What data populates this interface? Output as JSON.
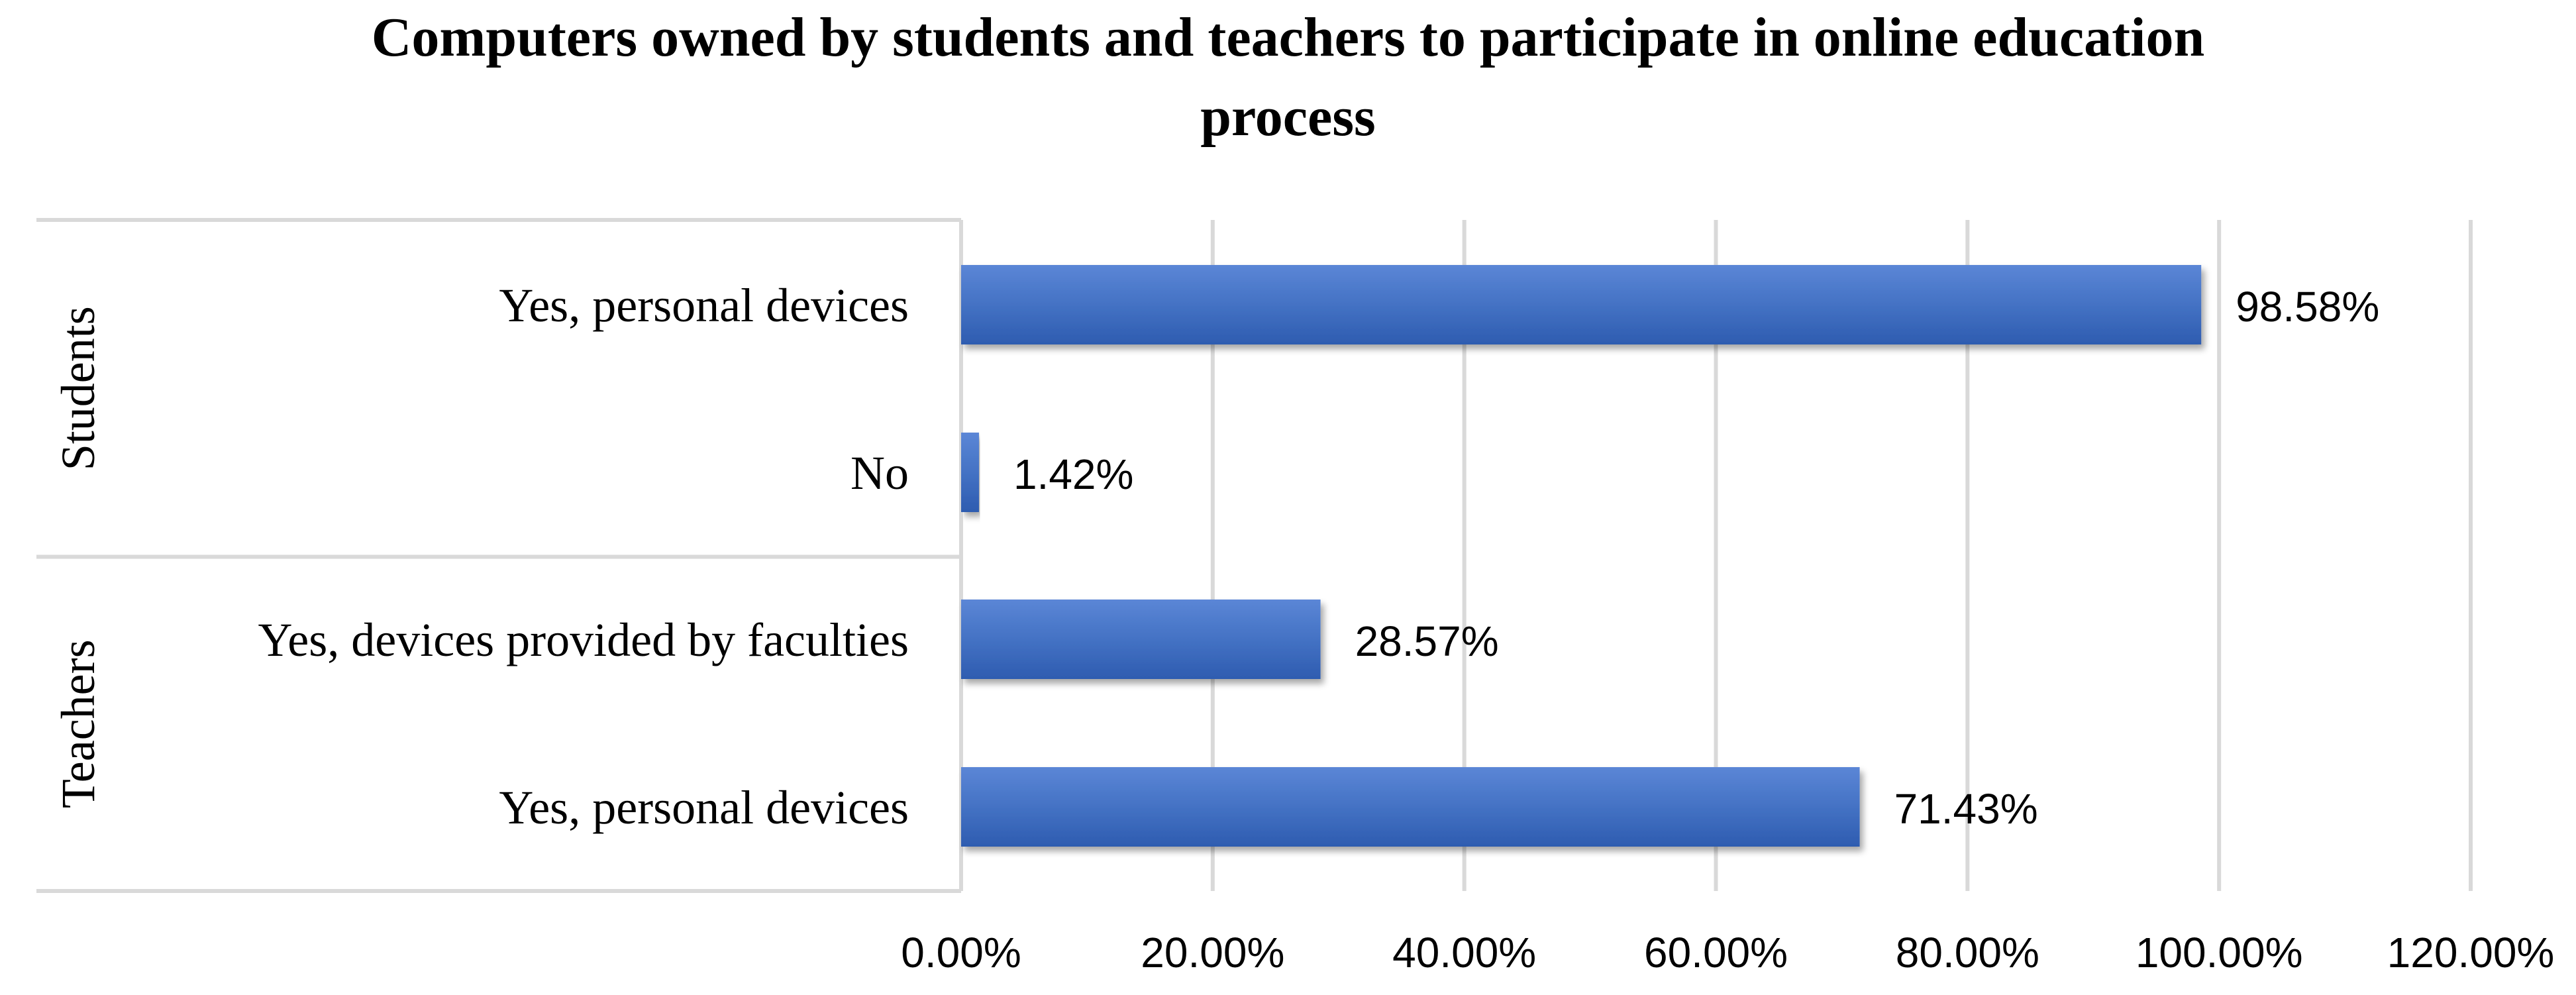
{
  "chart_data": {
    "type": "bar",
    "orientation": "horizontal",
    "title_lines": [
      "Computers owned by students and teachers to participate in online education",
      "process"
    ],
    "groups": [
      {
        "name": "Students",
        "categories": [
          "Yes, personal devices",
          "No"
        ],
        "values": [
          98.58,
          1.42
        ],
        "data_labels": [
          "98.58%",
          "1.42%"
        ]
      },
      {
        "name": "Teachers",
        "categories": [
          "Yes, devices provided by faculties",
          "Yes, personal devices"
        ],
        "values": [
          28.57,
          71.43
        ],
        "data_labels": [
          "28.57%",
          "71.43%"
        ]
      }
    ],
    "x_ticks": [
      "0.00%",
      "20.00%",
      "40.00%",
      "60.00%",
      "80.00%",
      "100.00%",
      "120.00%"
    ],
    "xlim": [
      0,
      120
    ],
    "grid": "vertical",
    "legend": "none",
    "bar_color": "#4472C4",
    "bar_color_light": "#5B86D6",
    "bar_color_dark": "#2E5CB0",
    "grid_color": "#D9D9D9",
    "divider_color": "#D9D9D9"
  }
}
